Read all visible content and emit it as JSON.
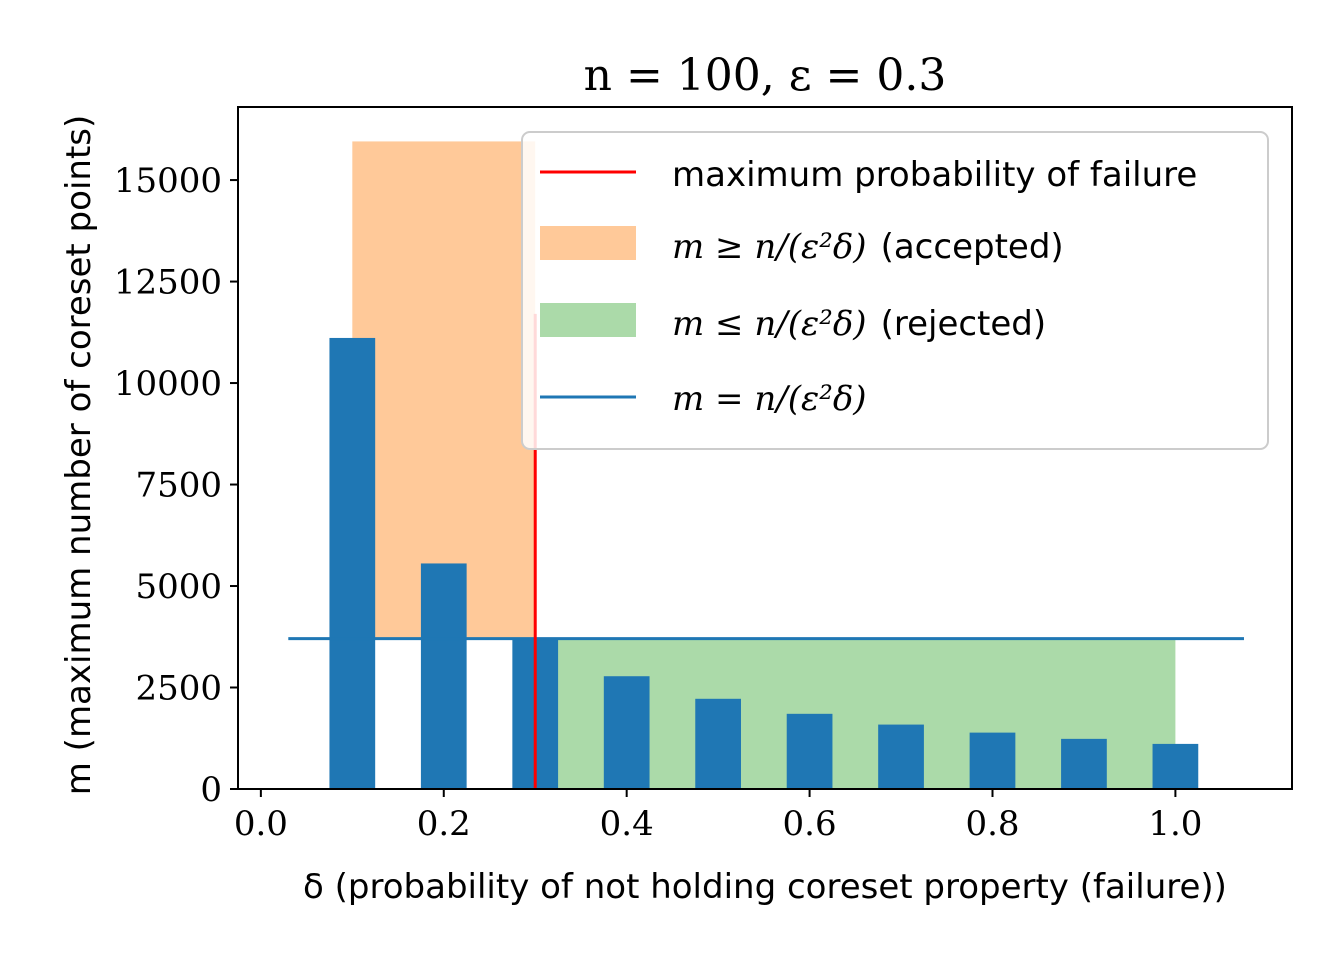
{
  "chart_data": {
    "type": "bar",
    "title": "n = 100, ε = 0.3",
    "xlabel": "δ (probability of not holding coreset property (failure))",
    "ylabel": "m (maximum number of coreset points)",
    "x": [
      0.1,
      0.2,
      0.3,
      0.4,
      0.5,
      0.6,
      0.7,
      0.8,
      0.9,
      1.0
    ],
    "values": [
      11111,
      5556,
      3704,
      2778,
      2222,
      1852,
      1587,
      1389,
      1235,
      1111
    ],
    "xlim": [
      -0.025,
      1.1275
    ],
    "ylim": [
      0,
      16800
    ],
    "xticks": [
      0.0,
      0.2,
      0.4,
      0.6,
      0.8,
      1.0
    ],
    "xtick_labels": [
      "0.0",
      "0.2",
      "0.4",
      "0.6",
      "0.8",
      "1.0"
    ],
    "yticks": [
      0,
      2500,
      5000,
      7500,
      10000,
      12500,
      15000
    ],
    "ytick_labels": [
      "0",
      "2500",
      "5000",
      "7500",
      "10000",
      "12500",
      "15000"
    ],
    "bar_width": 0.05,
    "bar_color": "#1f77b4",
    "max_failure_line": {
      "x": 0.3,
      "y_top": 11704,
      "color": "#ff0000",
      "label": "maximum probability of failure"
    },
    "accepted_region": {
      "x": [
        0.1,
        0.3
      ],
      "y": [
        3704,
        15952
      ],
      "color": "#ffc999",
      "label_math": "m ≥ n/(ε²δ)",
      "label_text": "(accepted)"
    },
    "rejected_region": {
      "x": [
        0.3,
        1.0
      ],
      "y": [
        0,
        3704
      ],
      "color": "#abdaa9",
      "label_math": "m ≤ n/(ε²δ)",
      "label_text": "(rejected)"
    },
    "threshold_line": {
      "y": 3704,
      "x": [
        0.03,
        1.075
      ],
      "color": "#1f77b4",
      "label_math": "m = n/(ε²δ)"
    },
    "legend_position": "upper-right",
    "grid": false
  }
}
